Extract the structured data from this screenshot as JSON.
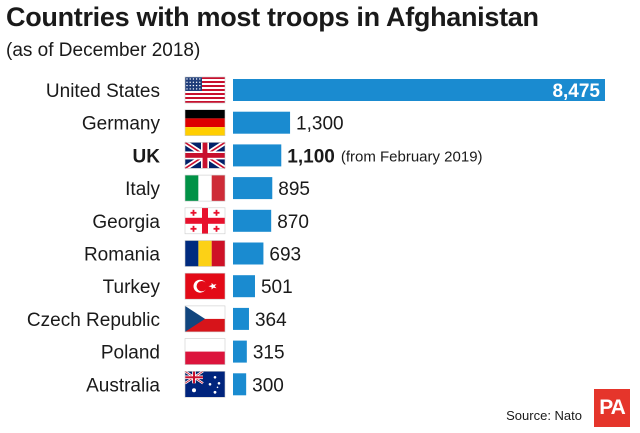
{
  "title": "Countries with most troops in Afghanistan",
  "subtitle": "(as of December 2018)",
  "source": "Source: Nato",
  "logo": "PA",
  "colors": {
    "bar": "#1a8bd0",
    "text": "#1a1a1a",
    "logo_bg": "#e5352b"
  },
  "chart_data": {
    "type": "bar",
    "orientation": "horizontal",
    "title": "Countries with most troops in Afghanistan",
    "subtitle": "(as of December 2018)",
    "categories": [
      "United States",
      "Germany",
      "UK",
      "Italy",
      "Georgia",
      "Romania",
      "Turkey",
      "Czech Republic",
      "Poland",
      "Australia"
    ],
    "values": [
      8475,
      1300,
      1100,
      895,
      870,
      693,
      501,
      364,
      315,
      300
    ],
    "value_labels": [
      "8,475",
      "1,300",
      "1,100",
      "895",
      "870",
      "693",
      "501",
      "364",
      "315",
      "300"
    ],
    "annotations": [
      {
        "category": "UK",
        "text": "(from February 2019)"
      }
    ],
    "highlighted": [
      "UK"
    ],
    "flags": [
      "us-flag-icon",
      "germany-flag-icon",
      "uk-flag-icon",
      "italy-flag-icon",
      "georgia-flag-icon",
      "romania-flag-icon",
      "turkey-flag-icon",
      "czech-flag-icon",
      "poland-flag-icon",
      "australia-flag-icon"
    ],
    "grid": false,
    "legend": "none"
  }
}
